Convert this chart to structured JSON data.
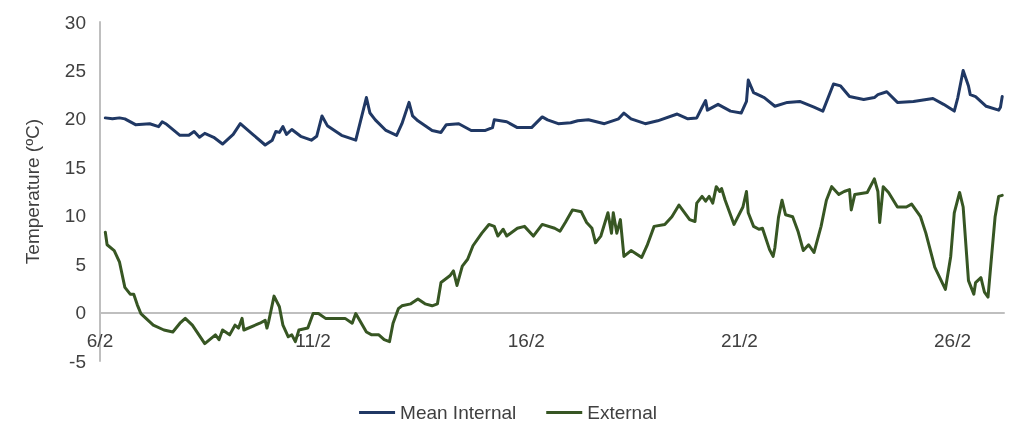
{
  "chart_data": {
    "type": "line",
    "ylabel": "Temperature (ºC)",
    "xlim": [
      "--02-06",
      "--02-27T05:00"
    ],
    "xticks": [
      {
        "value": "--02-06",
        "label": "6/2"
      },
      {
        "value": "--02-11",
        "label": "11/2"
      },
      {
        "value": "--02-16",
        "label": "16/2"
      },
      {
        "value": "--02-21",
        "label": "21/2"
      },
      {
        "value": "--02-26",
        "label": "26/2"
      }
    ],
    "ylim": [
      -5,
      30
    ],
    "yticks": [
      -5,
      0,
      5,
      10,
      15,
      20,
      25,
      30
    ],
    "grid": false,
    "legend": "bottom",
    "marker": "none",
    "line_style": "solid",
    "series": [
      {
        "name": "Mean Internal",
        "color": "#203864",
        "x": [
          "--02-06T03:00",
          "--02-06T07:00",
          "--02-06T11:00",
          "--02-06T14:00",
          "--02-06T20:00",
          "--02-07T04:00",
          "--02-07T09:00",
          "--02-07T11:00",
          "--02-07T13:00",
          "--02-07T21:00",
          "--02-08T02:00",
          "--02-08T05:00",
          "--02-08T08:00",
          "--02-08T11:00",
          "--02-08T16:00",
          "--02-08T21:00",
          "--02-09T03:00",
          "--02-09T07:00",
          "--02-09T14:00",
          "--02-09T21:00",
          "--02-10T01:00",
          "--02-10T03:00",
          "--02-10T05:00",
          "--02-10T07:00",
          "--02-10T09:00",
          "--02-10T12:00",
          "--02-10T17:00",
          "--02-10T23:00",
          "--02-11T02:00",
          "--02-11T05:00",
          "--02-11T08:00",
          "--02-11T16:00",
          "--02-12T00:00",
          "--02-12T06:00",
          "--02-12T08:00",
          "--02-12T11:00",
          "--02-12T17:00",
          "--02-12T23:00",
          "--02-13T02:00",
          "--02-13T06:00",
          "--02-13T08:00",
          "--02-13T11:00",
          "--02-13T19:00",
          "--02-14T00:00",
          "--02-14T03:00",
          "--02-14T10:00",
          "--02-14T17:00",
          "--02-15T01:00",
          "--02-15T05:00",
          "--02-15T06:00",
          "--02-15T13:00",
          "--02-15T19:00",
          "--02-16T03:00",
          "--02-16T09:00",
          "--02-16T12:00",
          "--02-16T18:00",
          "--02-17T01:00",
          "--02-17T05:00",
          "--02-17T11:00",
          "--02-17T20:00",
          "--02-18T04:00",
          "--02-18T07:00",
          "--02-18T11:00",
          "--02-18T19:00",
          "--02-19T02:00",
          "--02-19T13:00",
          "--02-19T19:00",
          "--02-20T00:00",
          "--02-20T03:00",
          "--02-20T05:00",
          "--02-20T06:00",
          "--02-20T12:00",
          "--02-20T19:00",
          "--02-21T01:00",
          "--02-21T04:00",
          "--02-21T05:00",
          "--02-21T08:00",
          "--02-21T14:00",
          "--02-21T20:00",
          "--02-22T03:00",
          "--02-22T10:00",
          "--02-22T18:00",
          "--02-22T23:00",
          "--02-23T05:00",
          "--02-23T09:00",
          "--02-23T14:00",
          "--02-23T22:00",
          "--02-24T04:00",
          "--02-24T06:00",
          "--02-24T11:00",
          "--02-24T17:00",
          "--02-25T02:00",
          "--02-25T13:00",
          "--02-25T19:00",
          "--02-26T01:00",
          "--02-26T03:00",
          "--02-26T06:00",
          "--02-26T09:00",
          "--02-26T10:00",
          "--02-26T13:00",
          "--02-26T19:00",
          "--02-27T02:00",
          "--02-27T03:00",
          "--02-27T04:00"
        ],
        "values": [
          20.1,
          20.0,
          20.1,
          20.0,
          19.4,
          19.5,
          19.2,
          19.7,
          19.5,
          18.3,
          18.3,
          18.7,
          18.1,
          18.5,
          18.1,
          17.4,
          18.4,
          19.5,
          18.4,
          17.3,
          17.8,
          18.7,
          18.6,
          19.2,
          18.4,
          18.9,
          18.2,
          17.8,
          18.2,
          20.3,
          19.3,
          18.3,
          17.8,
          22.2,
          20.6,
          19.9,
          18.8,
          18.3,
          19.5,
          21.7,
          20.3,
          19.8,
          18.8,
          18.6,
          19.4,
          19.5,
          18.8,
          18.8,
          19.1,
          19.9,
          19.7,
          19.1,
          19.1,
          20.2,
          19.9,
          19.5,
          19.6,
          19.8,
          19.9,
          19.5,
          20.0,
          20.6,
          20.0,
          19.5,
          19.8,
          20.5,
          20.0,
          20.1,
          21.2,
          21.9,
          20.9,
          21.5,
          20.8,
          20.6,
          21.8,
          24.0,
          22.7,
          22.2,
          21.3,
          21.7,
          21.8,
          21.2,
          20.8,
          23.6,
          23.4,
          22.3,
          22.0,
          22.2,
          22.5,
          22.8,
          21.7,
          21.8,
          22.1,
          21.5,
          20.8,
          22.2,
          25.0,
          23.4,
          22.5,
          22.3,
          21.3,
          20.9,
          21.2,
          22.3
        ]
      },
      {
        "name": "External",
        "color": "#375623",
        "x": [
          "--02-06T03:00",
          "--02-06T04:00",
          "--02-06T08:00",
          "--02-06T11:00",
          "--02-06T14:00",
          "--02-06T17:00",
          "--02-06T19:00",
          "--02-06T21:00",
          "--02-06T23:00",
          "--02-07T06:00",
          "--02-07T12:00",
          "--02-07T17:00",
          "--02-07T21:00",
          "--02-08T00:00",
          "--02-08T04:00",
          "--02-08T11:00",
          "--02-08T17:00",
          "--02-08T19:00",
          "--02-08T21:00",
          "--02-09T01:00",
          "--02-09T04:00",
          "--02-09T06:00",
          "--02-09T08:00",
          "--02-09T09:00",
          "--02-09T18:00",
          "--02-09T21:00",
          "--02-09T22:00",
          "--02-09T23:00",
          "--02-10T02:00",
          "--02-10T05:00",
          "--02-10T07:00",
          "--02-10T10:00",
          "--02-10T12:00",
          "--02-10T14:00",
          "--02-10T16:00",
          "--02-10T21:00",
          "--02-11T00:00",
          "--02-11T03:00",
          "--02-11T07:00",
          "--02-11T18:00",
          "--02-11T22:00",
          "--02-12T00:00",
          "--02-12T06:00",
          "--02-12T09:00",
          "--02-12T13:00",
          "--02-12T16:00",
          "--02-12T19:00",
          "--02-12T21:00",
          "--02-13T00:00",
          "--02-13T02:00",
          "--02-13T07:00",
          "--02-13T11:00",
          "--02-13T15:00",
          "--02-13T19:00",
          "--02-13T22:00",
          "--02-14T00:00",
          "--02-14T05:00",
          "--02-14T07:00",
          "--02-14T09:00",
          "--02-14T12:00",
          "--02-14T15:00",
          "--02-14T18:00",
          "--02-14T23:00",
          "--02-15T03:00",
          "--02-15T06:00",
          "--02-15T08:00",
          "--02-15T11:00",
          "--02-15T13:00",
          "--02-15T19:00",
          "--02-15T23:00",
          "--02-16T04:00",
          "--02-16T09:00",
          "--02-16T16:00",
          "--02-16T19:00",
          "--02-16T22:00",
          "--02-17T02:00",
          "--02-17T07:00",
          "--02-17T10:00",
          "--02-17T13:00",
          "--02-17T15:00",
          "--02-17T18:00",
          "--02-17T22:00",
          "--02-18T00:00",
          "--02-18T01:00",
          "--02-18T03:00",
          "--02-18T05:00",
          "--02-18T07:00",
          "--02-18T11:00",
          "--02-18T17:00",
          "--02-18T20:00",
          "--02-19T00:00",
          "--02-19T06:00",
          "--02-19T10:00",
          "--02-19T14:00",
          "--02-19T20:00",
          "--02-19T23:00",
          "--02-20T00:00",
          "--02-20T03:00",
          "--02-20T05:00",
          "--02-20T07:00",
          "--02-20T09:00",
          "--02-20T11:00",
          "--02-20T13:00",
          "--02-20T14:00",
          "--02-20T16:00",
          "--02-20T21:00",
          "--02-21T02:00",
          "--02-21T04:00",
          "--02-21T05:00",
          "--02-21T08:00",
          "--02-21T11:00",
          "--02-21T13:00",
          "--02-21T17:00",
          "--02-21T19:00",
          "--02-21T20:00",
          "--02-21T22:00",
          "--02-22T00:00",
          "--02-22T02:00",
          "--02-22T06:00",
          "--02-22T09:00",
          "--02-22T12:00",
          "--02-22T15:00",
          "--02-22T18:00",
          "--02-22T22:00",
          "--02-23T01:00",
          "--02-23T04:00",
          "--02-23T08:00",
          "--02-23T11:00",
          "--02-23T14:00",
          "--02-23T15:00",
          "--02-23T17:00",
          "--02-24T00:00",
          "--02-24T04:00",
          "--02-24T06:00",
          "--02-24T07:00",
          "--02-24T09:00",
          "--02-24T12:00",
          "--02-24T17:00",
          "--02-24T22:00",
          "--02-25T01:00",
          "--02-25T06:00",
          "--02-25T09:00",
          "--02-25T14:00",
          "--02-25T20:00",
          "--02-25T23:00",
          "--02-26T01:00",
          "--02-26T04:00",
          "--02-26T06:00",
          "--02-26T09:00",
          "--02-26T12:00",
          "--02-26T13:00",
          "--02-26T16:00",
          "--02-26T18:00",
          "--02-26T20:00",
          "--02-26T22:00",
          "--02-27T00:00",
          "--02-27T02:00",
          "--02-27T04:00"
        ],
        "values": [
          8.3,
          7.0,
          6.4,
          5.2,
          2.6,
          1.9,
          1.9,
          0.8,
          -0.1,
          -1.3,
          -1.8,
          -2.0,
          -1.1,
          -0.6,
          -1.3,
          -3.2,
          -2.3,
          -2.8,
          -1.8,
          -2.3,
          -1.3,
          -1.6,
          -0.6,
          -1.8,
          -1.1,
          -0.8,
          -1.6,
          -0.9,
          1.7,
          0.6,
          -1.3,
          -2.5,
          -2.3,
          -3.0,
          -1.8,
          -1.6,
          -0.1,
          -0.1,
          -0.6,
          -0.6,
          -1.1,
          -0.1,
          -2.0,
          -2.3,
          -2.3,
          -2.8,
          -3.0,
          -1.1,
          0.4,
          0.7,
          0.9,
          1.4,
          0.9,
          0.7,
          0.9,
          3.1,
          3.8,
          4.3,
          2.8,
          4.8,
          5.5,
          6.9,
          8.2,
          9.1,
          8.9,
          7.9,
          8.6,
          7.9,
          8.7,
          8.9,
          7.9,
          9.1,
          8.7,
          8.4,
          9.3,
          10.6,
          10.4,
          9.3,
          8.7,
          7.2,
          7.9,
          10.3,
          8.2,
          10.3,
          8.2,
          9.6,
          5.8,
          6.4,
          5.7,
          6.9,
          8.9,
          9.1,
          9.9,
          11.1,
          9.6,
          9.4,
          11.3,
          12.0,
          11.5,
          12.0,
          11.3,
          13.0,
          12.5,
          12.8,
          11.6,
          9.1,
          10.9,
          12.5,
          10.3,
          8.9,
          8.6,
          8.7,
          6.5,
          5.8,
          6.7,
          9.8,
          11.6,
          10.1,
          9.9,
          8.4,
          6.4,
          7.0,
          6.2,
          8.9,
          11.6,
          13.0,
          12.2,
          12.5,
          12.7,
          10.6,
          12.2,
          12.4,
          13.8,
          12.5,
          9.3,
          13.0,
          12.4,
          10.9,
          10.9,
          11.2,
          9.9,
          8.2,
          4.7,
          2.4,
          5.8,
          10.3,
          12.4,
          10.9,
          3.3,
          1.9,
          3.1,
          3.6,
          2.1,
          1.6,
          5.8,
          9.9,
          12.0,
          12.1
        ]
      }
    ]
  }
}
